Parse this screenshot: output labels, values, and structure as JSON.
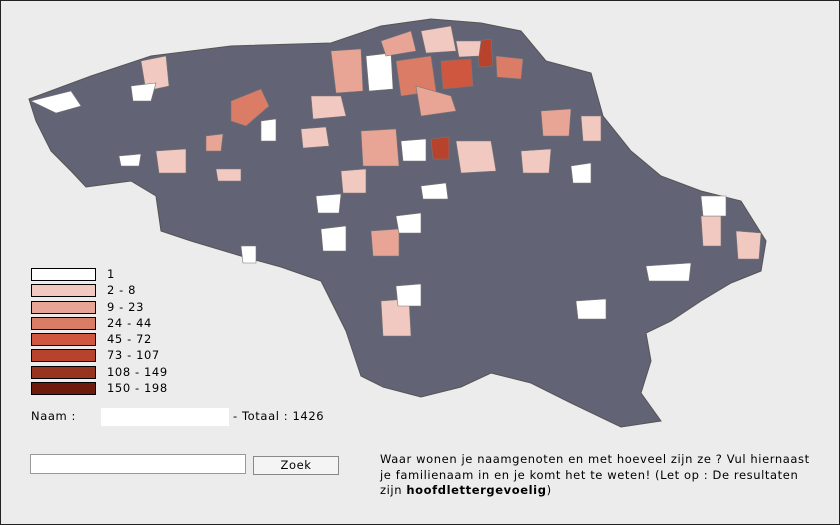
{
  "legend": {
    "items": [
      {
        "label": "1",
        "color": "#ffffff"
      },
      {
        "label": "2 - 8",
        "color": "#f2c9c0"
      },
      {
        "label": "9 - 23",
        "color": "#e8a595"
      },
      {
        "label": "24 - 44",
        "color": "#db7c66"
      },
      {
        "label": "45 - 72",
        "color": "#d0573f"
      },
      {
        "label": "73 - 107",
        "color": "#b8432d"
      },
      {
        "label": "108 - 149",
        "color": "#97331f"
      },
      {
        "label": "150 - 198",
        "color": "#6e1a0d"
      }
    ]
  },
  "result": {
    "name_label": "Naam :",
    "total": "- Totaal : 1426"
  },
  "search": {
    "button": "Zoek"
  },
  "info": {
    "text": "Waar wonen je naamgenoten en met hoeveel zijn ze ? Vul hiernaast je familienaam in en je komt het te weten! (Let op : De resultaten zijn ",
    "bold": "hoofdlettergevoelig",
    "end": ")"
  }
}
